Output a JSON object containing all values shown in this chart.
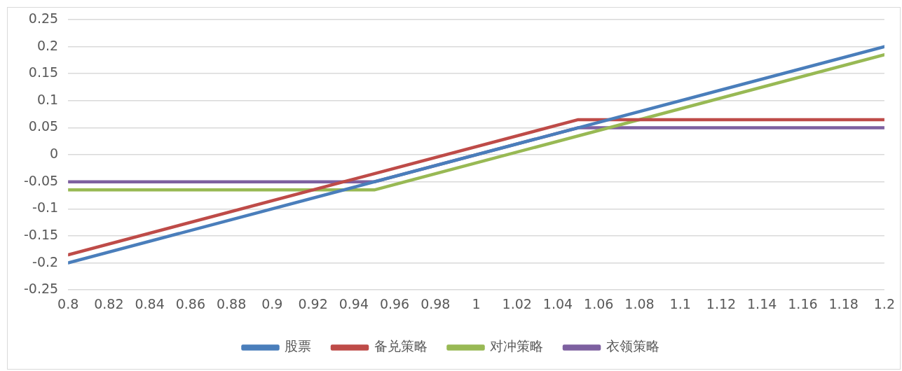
{
  "chart_data": {
    "type": "line",
    "xlim": [
      0.8,
      1.2
    ],
    "xticks": [
      0.8,
      0.82,
      0.84,
      0.86,
      0.88,
      0.9,
      0.92,
      0.94,
      0.96,
      0.98,
      1,
      1.02,
      1.04,
      1.06,
      1.08,
      1.1,
      1.12,
      1.14,
      1.16,
      1.18,
      1.2
    ],
    "ylim": [
      -0.25,
      0.25
    ],
    "yticks": [
      -0.25,
      -0.2,
      -0.15,
      -0.1,
      -0.05,
      0,
      0.05,
      0.1,
      0.15,
      0.2,
      0.25
    ],
    "grid": "y",
    "legend": "bottom",
    "marker": "none",
    "line_style": "solid",
    "series": [
      {
        "name": "股票",
        "color": "#4a7ebb",
        "x": [
          0.8,
          1.2
        ],
        "values": [
          -0.2,
          0.2
        ]
      },
      {
        "name": "备兑策略",
        "color": "#be4b48",
        "x": [
          0.8,
          1.05,
          1.2
        ],
        "values": [
          -0.185,
          0.065,
          0.065
        ]
      },
      {
        "name": "对冲策略",
        "color": "#98b954",
        "x": [
          0.8,
          0.95,
          1.2
        ],
        "values": [
          -0.065,
          -0.065,
          0.185
        ]
      },
      {
        "name": "衣领策略",
        "color": "#7d60a0",
        "x": [
          0.8,
          0.95,
          1.05,
          1.2
        ],
        "values": [
          -0.05,
          -0.05,
          0.05,
          0.05
        ]
      }
    ]
  }
}
